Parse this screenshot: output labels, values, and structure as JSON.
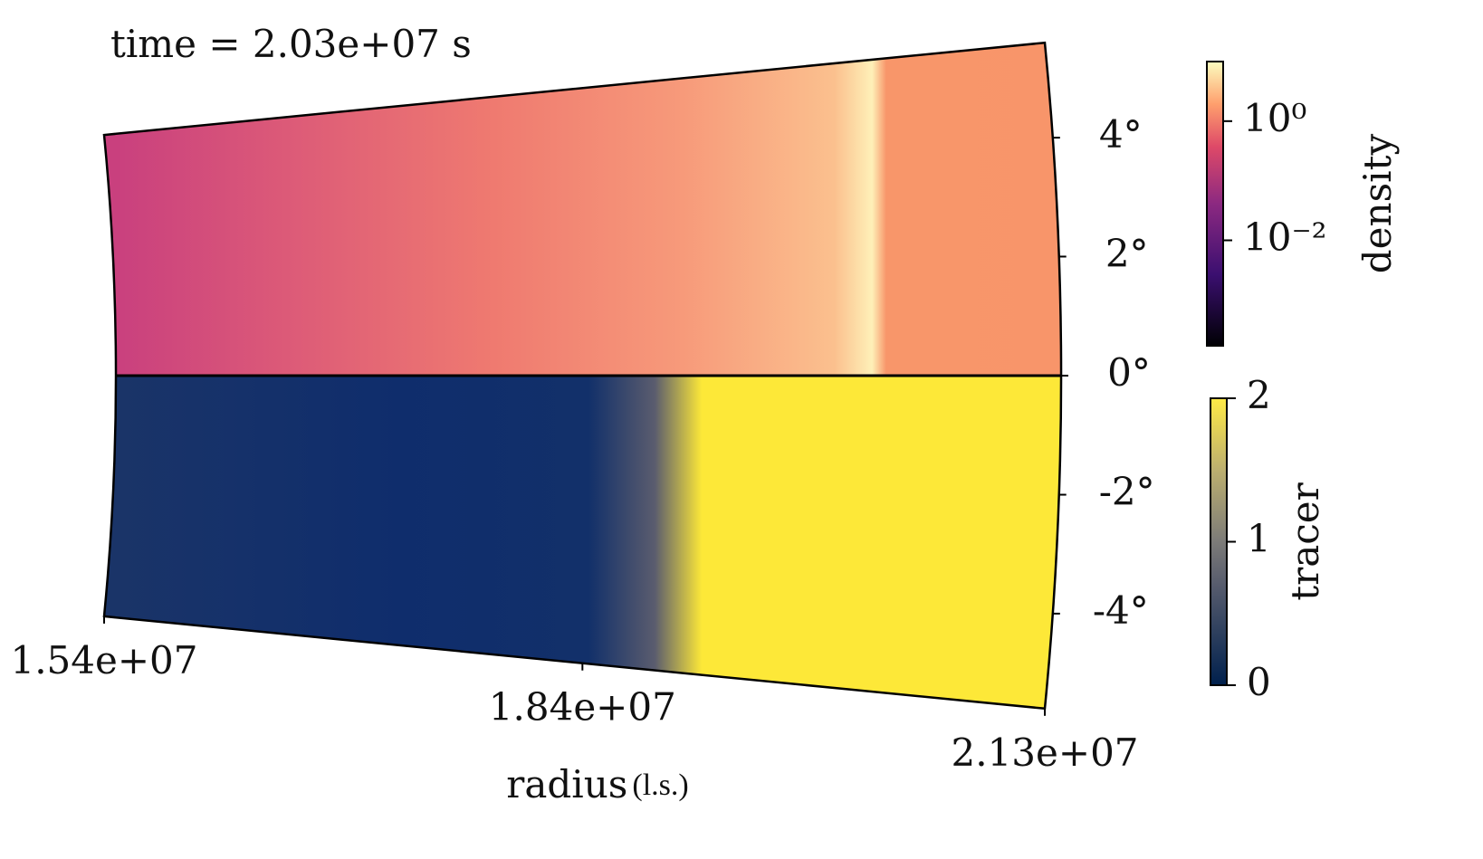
{
  "chart_data": {
    "type": "wedge",
    "title": "time = 2.03e+07 s",
    "xlabel": "radius",
    "xlabel_unit": "(l.s.)",
    "rlim": [
      15400000,
      21300000
    ],
    "rticks": [
      {
        "value": 15400000,
        "label": "1.54e+07"
      },
      {
        "value": 18400000,
        "label": "1.84e+07"
      },
      {
        "value": 21300000,
        "label": "2.13e+07"
      }
    ],
    "thetalim": [
      -5.6,
      5.6
    ],
    "thetaticks": [
      {
        "value": 4,
        "label": "4°"
      },
      {
        "value": 2,
        "label": "2°"
      },
      {
        "value": 0,
        "label": "0°"
      },
      {
        "value": -2,
        "label": "-2°"
      },
      {
        "value": -4,
        "label": "-4°"
      }
    ],
    "colorbars": [
      {
        "label": "density",
        "scale": "log",
        "clim": [
          0.00017,
          10
        ],
        "ticks": [
          {
            "value": 1,
            "label": "10⁰"
          },
          {
            "value": 0.01,
            "label": "10⁻²"
          }
        ]
      },
      {
        "label": "tracer",
        "scale": "linear",
        "clim": [
          0,
          2
        ],
        "ticks": [
          0,
          1,
          2
        ]
      }
    ]
  }
}
